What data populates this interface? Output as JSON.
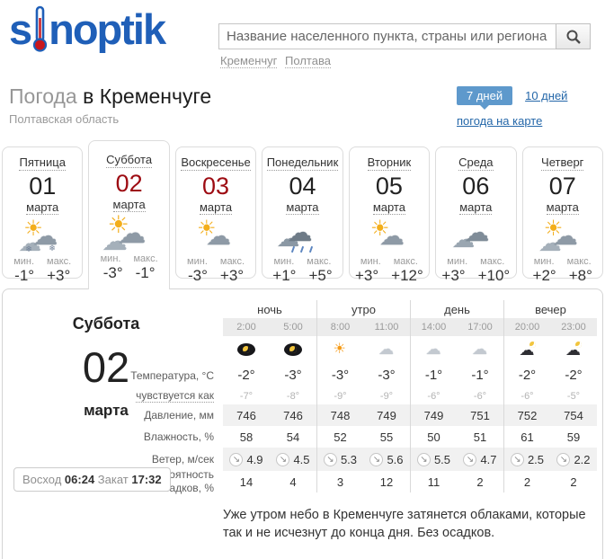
{
  "header": {
    "logo_left": "s",
    "logo_right": "noptik",
    "search_placeholder": "Название населенного пункта, страны или региона",
    "crumbs": [
      "Кременчуг",
      "Полтава"
    ]
  },
  "title": {
    "gray": "Погода",
    "dark": "в Кременчуге",
    "subtitle": "Полтавская область"
  },
  "controls": {
    "days7": "7 дней",
    "days10": "10 дней",
    "map": "погода на карте"
  },
  "days_labels": {
    "min": "мин.",
    "max": "макс."
  },
  "days": [
    {
      "name": "Пятница",
      "date": "01",
      "month": "марта",
      "icon": "sun-cloud-snow",
      "min": "-1°",
      "max": "+3°",
      "weekend": false,
      "selected": false
    },
    {
      "name": "Суббота",
      "date": "02",
      "month": "марта",
      "icon": "sun-clouds",
      "min": "-3°",
      "max": "-1°",
      "weekend": true,
      "selected": true
    },
    {
      "name": "Воскресенье",
      "date": "03",
      "month": "марта",
      "icon": "sun-cloud",
      "min": "-3°",
      "max": "+3°",
      "weekend": true,
      "selected": false
    },
    {
      "name": "Понедельник",
      "date": "04",
      "month": "марта",
      "icon": "rain-cloud",
      "min": "+1°",
      "max": "+5°",
      "weekend": false,
      "selected": false
    },
    {
      "name": "Вторник",
      "date": "05",
      "month": "марта",
      "icon": "sun-cloud",
      "min": "+3°",
      "max": "+12°",
      "weekend": false,
      "selected": false
    },
    {
      "name": "Среда",
      "date": "06",
      "month": "марта",
      "icon": "cloud",
      "min": "+3°",
      "max": "+10°",
      "weekend": false,
      "selected": false
    },
    {
      "name": "Четверг",
      "date": "07",
      "month": "марта",
      "icon": "sun-clouds",
      "min": "+2°",
      "max": "+8°",
      "weekend": false,
      "selected": false
    }
  ],
  "detail": {
    "day_name": "Суббота",
    "date": "02",
    "month": "марта",
    "sunrise_label": "Восход",
    "sunrise": "06:24",
    "sunset_label": "Закат",
    "sunset": "17:32",
    "groups": [
      "ночь",
      "утро",
      "день",
      "вечер"
    ],
    "times": [
      "2:00",
      "5:00",
      "8:00",
      "11:00",
      "14:00",
      "17:00",
      "20:00",
      "23:00"
    ],
    "icons": [
      "moon",
      "moon",
      "sun",
      "cloud",
      "cloud",
      "cloud",
      "night-cloud",
      "night-cloud"
    ],
    "wind_direction_glyph": "↘",
    "rows": [
      {
        "label": "Температура, °C",
        "style": "temp",
        "values": [
          "-2°",
          "-3°",
          "-3°",
          "-3°",
          "-1°",
          "-1°",
          "-2°",
          "-2°"
        ]
      },
      {
        "label": "чувствуется как",
        "style": "feels",
        "values": [
          "-7°",
          "-8°",
          "-9°",
          "-9°",
          "-6°",
          "-6°",
          "-6°",
          "-5°"
        ]
      },
      {
        "label": "Давление, мм",
        "style": "band",
        "values": [
          "746",
          "746",
          "748",
          "749",
          "749",
          "751",
          "752",
          "754"
        ]
      },
      {
        "label": "Влажность, %",
        "style": "plain",
        "values": [
          "58",
          "54",
          "52",
          "55",
          "50",
          "51",
          "61",
          "59"
        ]
      },
      {
        "label": "Ветер, м/сек",
        "style": "wind",
        "values": [
          "4.9",
          "4.5",
          "5.3",
          "5.6",
          "5.5",
          "4.7",
          "2.5",
          "2.2"
        ]
      },
      {
        "label": "Вероятность осадков, %",
        "style": "plain",
        "values": [
          "14",
          "4",
          "3",
          "12",
          "11",
          "2",
          "2",
          "2"
        ]
      }
    ],
    "summary": "Уже утром небо в Кременчуге затянется облаками, которые так и не исчезнут до конца дня. Без осадков."
  },
  "colors": {
    "brand_blue": "#1f5fb8",
    "link_blue": "#2467a9",
    "active_button_blue": "#5e99cc",
    "weekend_red": "#9d0b12",
    "band_gray": "#f1f1f1",
    "thermometer_red": "#c8171d"
  }
}
